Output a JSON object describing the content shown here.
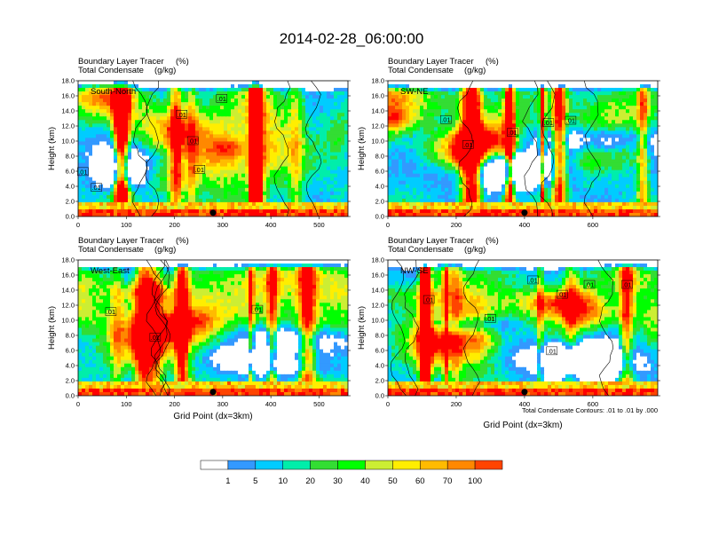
{
  "figure_title": "2014-02-28_06:00:00",
  "chart_data": [
    {
      "type": "heatmap",
      "panel": "South-North",
      "title_left": "Boundary Layer Tracer",
      "title_left_units": "(%)",
      "title_left2": "Total Condensate",
      "title_left2_units": "(g/kg)",
      "xlim": [
        0,
        560
      ],
      "ylim": [
        0,
        18
      ],
      "xticks": [
        0,
        100,
        200,
        300,
        400,
        500
      ],
      "ylabel": "Height (km)",
      "xlabel": "",
      "contour_labels": [
        {
          "text": ".01",
          "x": 10,
          "y": 5.9
        },
        {
          "text": ".01",
          "x": 38,
          "y": 3.8
        },
        {
          "text": ".01",
          "x": 215,
          "y": 13.5
        },
        {
          "text": ".01",
          "x": 238,
          "y": 10.0
        },
        {
          "text": ".01",
          "x": 252,
          "y": 6.2
        },
        {
          "text": ".01",
          "x": 298,
          "y": 15.6
        }
      ],
      "marker_x": 280
    },
    {
      "type": "heatmap",
      "panel": "SW-NE",
      "title_left": "Boundary Layer Tracer",
      "title_left_units": "(%)",
      "title_left2": "Total Condensate",
      "title_left2_units": "(g/kg)",
      "xlim": [
        0,
        790
      ],
      "ylim": [
        0,
        18
      ],
      "xticks": [
        0,
        200,
        400,
        600
      ],
      "ylabel": "Height (km)",
      "xlabel": "",
      "contour_labels": [
        {
          "text": ".01",
          "x": 170,
          "y": 12.8
        },
        {
          "text": ".01",
          "x": 235,
          "y": 9.5
        },
        {
          "text": ".01",
          "x": 365,
          "y": 11.1
        },
        {
          "text": ".01",
          "x": 470,
          "y": 12.4
        },
        {
          "text": ".01",
          "x": 535,
          "y": 12.7
        }
      ],
      "marker_x": 400
    },
    {
      "type": "heatmap",
      "panel": "West-East",
      "title_left": "Boundary Layer Tracer",
      "title_left_units": "(%)",
      "title_left2": "Total Condensate",
      "title_left2_units": "(g/kg)",
      "xlim": [
        0,
        560
      ],
      "ylim": [
        0,
        18
      ],
      "xticks": [
        0,
        100,
        200,
        300,
        400,
        500
      ],
      "ylabel": "Height (km)",
      "xlabel": "Grid Point (dx=3km)",
      "contour_labels": [
        {
          "text": ".01",
          "x": 68,
          "y": 11.1
        },
        {
          "text": ".01",
          "x": 160,
          "y": 7.7
        },
        {
          "text": ".01",
          "x": 372,
          "y": 11.4
        }
      ],
      "marker_x": 280
    },
    {
      "type": "heatmap",
      "panel": "NW-SE",
      "title_left": "Boundary Layer Tracer",
      "title_left_units": "(%)",
      "title_left2": "Total Condensate",
      "title_left2_units": "(g/kg)",
      "xlim": [
        0,
        790
      ],
      "ylim": [
        0,
        18
      ],
      "xticks": [
        0,
        200,
        400,
        600
      ],
      "ylabel": "Height (km)",
      "xlabel": "Grid Point (dx=3km)",
      "contour_note": "Total Condensate Contours: .01 to .01 by .000",
      "contour_labels": [
        {
          "text": ".01",
          "x": 120,
          "y": 12.7
        },
        {
          "text": ".01",
          "x": 300,
          "y": 10.2
        },
        {
          "text": ".01",
          "x": 425,
          "y": 15.3
        },
        {
          "text": ".01",
          "x": 510,
          "y": 13.4
        },
        {
          "text": ".01",
          "x": 590,
          "y": 14.7
        },
        {
          "text": ".01",
          "x": 700,
          "y": 14.7
        },
        {
          "text": ".01",
          "x": 480,
          "y": 5.9
        }
      ],
      "marker_x": 400
    }
  ],
  "colorbar": {
    "levels": [
      "1",
      "5",
      "10",
      "20",
      "30",
      "40",
      "50",
      "60",
      "70",
      "100"
    ],
    "colors": [
      "#ffffff",
      "#3399ff",
      "#00ccff",
      "#00eeaa",
      "#33dd33",
      "#00ff00",
      "#ccee33",
      "#ffee00",
      "#ffbb00",
      "#ff8800",
      "#ff4400",
      "#ff0000"
    ]
  }
}
